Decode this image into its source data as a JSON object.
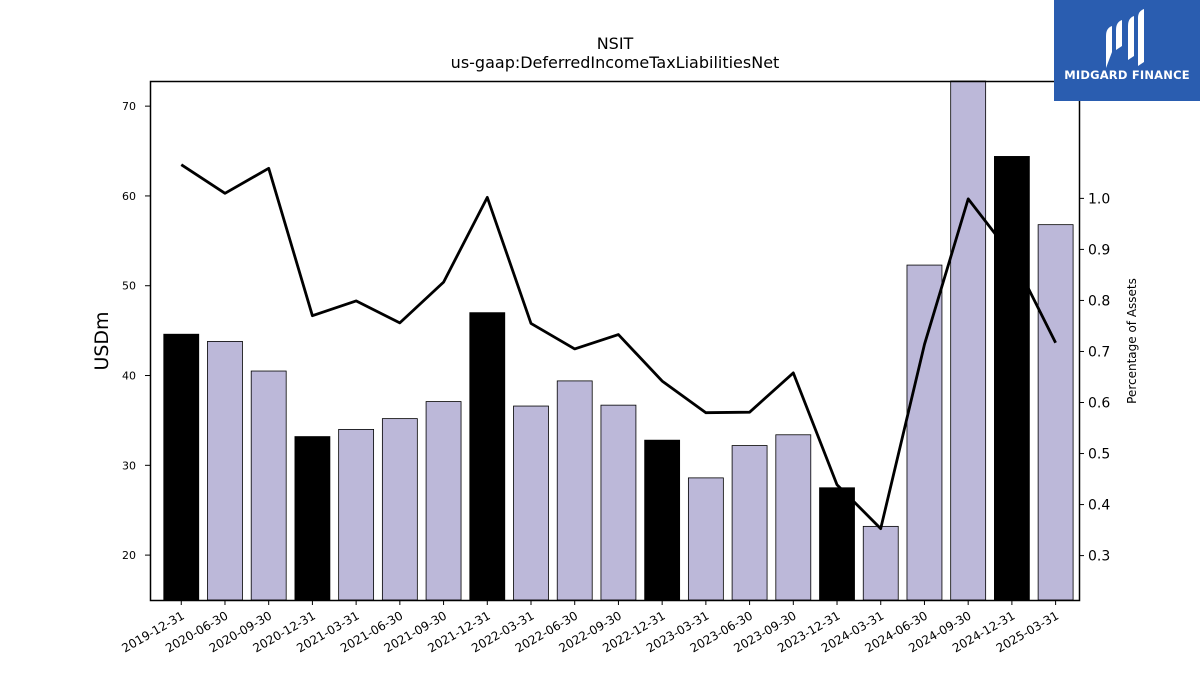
{
  "brand": {
    "name": "MIDGARD FINANCE",
    "bg_color": "#2a5db0"
  },
  "chart_data": {
    "type": "bar",
    "title": "NSIT",
    "subtitle": "us-gaap:DeferredIncomeTaxLiabilitiesNet",
    "ylabel": "USDm",
    "y2label": "Percentage of Assets",
    "ylim": [
      15,
      72.8
    ],
    "y2lim": [
      0.213,
      1.23
    ],
    "yticks": [
      20,
      30,
      40,
      50,
      60,
      70
    ],
    "y2ticks": [
      0.3,
      0.4,
      0.5,
      0.6,
      0.7,
      0.8,
      0.9,
      1.0
    ],
    "categories": [
      "2019-12-31",
      "2020-06-30",
      "2020-09-30",
      "2020-12-31",
      "2021-03-31",
      "2021-06-30",
      "2021-09-30",
      "2021-12-31",
      "2022-03-31",
      "2022-06-30",
      "2022-09-30",
      "2022-12-31",
      "2023-03-31",
      "2023-06-30",
      "2023-09-30",
      "2023-12-31",
      "2024-03-31",
      "2024-06-30",
      "2024-09-30",
      "2024-12-31",
      "2025-03-31"
    ],
    "series": [
      {
        "type": "bar",
        "values": [
          44.6,
          43.8,
          40.5,
          33.2,
          34.0,
          35.2,
          37.1,
          47.0,
          36.6,
          39.4,
          36.7,
          32.8,
          28.6,
          32.2,
          33.4,
          27.5,
          23.2,
          52.3,
          72.8,
          64.4,
          56.8
        ],
        "colors": [
          "#000000",
          "#bcb8d9",
          "#bcb8d9",
          "#000000",
          "#bcb8d9",
          "#bcb8d9",
          "#bcb8d9",
          "#000000",
          "#bcb8d9",
          "#bcb8d9",
          "#bcb8d9",
          "#000000",
          "#bcb8d9",
          "#bcb8d9",
          "#bcb8d9",
          "#000000",
          "#bcb8d9",
          "#bcb8d9",
          "#bcb8d9",
          "#000000",
          "#bcb8d9"
        ]
      },
      {
        "type": "line",
        "axis": "right",
        "color": "#000000",
        "values": [
          1.066,
          1.01,
          1.059,
          0.77,
          0.799,
          0.756,
          0.836,
          1.002,
          0.755,
          0.705,
          0.733,
          0.642,
          0.58,
          0.581,
          0.658,
          0.439,
          0.353,
          0.714,
          0.999,
          0.888,
          0.717
        ]
      }
    ]
  }
}
